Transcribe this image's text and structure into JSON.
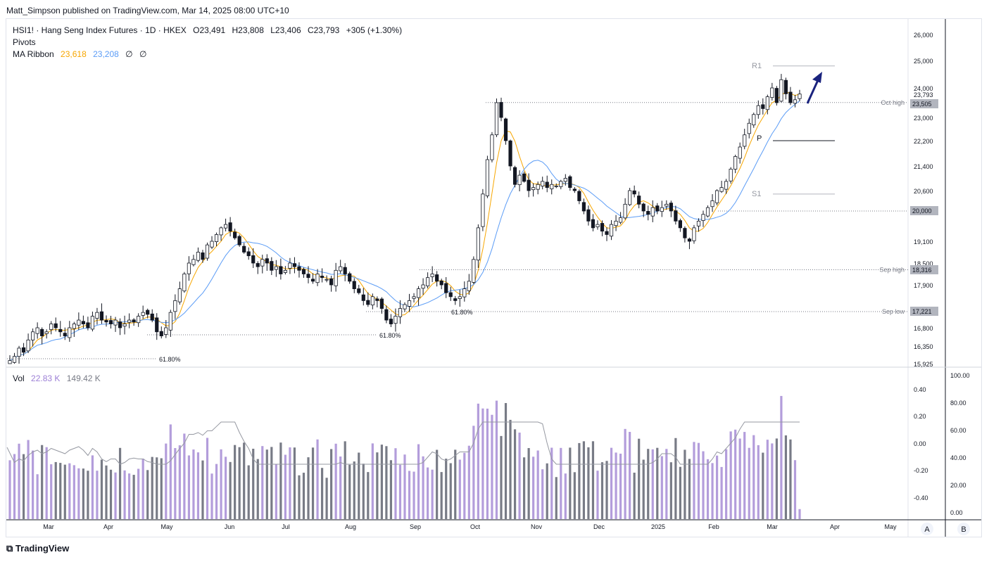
{
  "publisher": "Matt_Simpson published on TradingView.com, Mar 14, 2025 08:00 UTC+10",
  "legend": {
    "symbol": "HSI1! · Hang Seng Index Futures · 1D · HKEX",
    "open": "O23,491",
    "high": "H23,808",
    "low": "L23,406",
    "close": "C23,793",
    "change": "+305 (+1.30%)",
    "pivots": "Pivots",
    "ma_label": "MA Ribbon",
    "ma1": "23,618",
    "ma2": "23,208",
    "ma3": "∅",
    "ma4": "∅"
  },
  "volume_legend": {
    "label": "Vol",
    "v1": "22.83 K",
    "v2": "149.42 K"
  },
  "brand": "TradingView",
  "scale_buttons": [
    "A",
    "B"
  ],
  "colors": {
    "up_candle": "#ffffff",
    "down_candle": "#131722",
    "ma_fast": "#f7a600",
    "ma_slow": "#5b9cf6",
    "vol_up": "#b39ddb",
    "vol_down": "#787b86",
    "arrow": "#1a237e",
    "price_label_bg": "#b2b5be"
  },
  "chart_data": {
    "type": "candlestick",
    "x_axis_labels": [
      "Mar",
      "Apr",
      "May",
      "Jun",
      "Jul",
      "Aug",
      "Sep",
      "Oct",
      "Nov",
      "Dec",
      "2025",
      "Feb",
      "Mar",
      "Apr",
      "May"
    ],
    "price_axis_ticks": [
      "26,000",
      "25,000",
      "24,000",
      "23,000",
      "22,200",
      "21,400",
      "20,600",
      "19,100",
      "18,500",
      "17,900",
      "16,800",
      "16,350",
      "15,925"
    ],
    "volume_axis_left": [
      "0.40",
      "0.20",
      "0.00",
      "-0.20",
      "-0.40"
    ],
    "volume_axis_right": [
      "100.00",
      "80.00",
      "60.00",
      "40.00",
      "20.00",
      "0.00"
    ],
    "price_labels": [
      {
        "text": "23,793",
        "type": "last"
      },
      {
        "text": "23,505",
        "type": "highlight"
      },
      {
        "text": "20,000",
        "type": "highlight"
      },
      {
        "text": "18,316",
        "type": "highlight"
      },
      {
        "text": "17,221",
        "type": "highlight"
      }
    ],
    "levels": [
      {
        "label": "Oct high",
        "value": 23505
      },
      {
        "label": "Sep high",
        "value": 18316
      },
      {
        "label": "Sep low",
        "value": 17221
      },
      {
        "label": "",
        "value": 20000
      }
    ],
    "pivots": [
      {
        "label": "R1",
        "value": 24800
      },
      {
        "label": "P",
        "value": 22200
      },
      {
        "label": "S1",
        "value": 20500
      }
    ],
    "fib_labels": [
      "61.80%",
      "61.80%",
      "61.80%"
    ],
    "series_close": [
      16000,
      16100,
      16300,
      16200,
      16500,
      16700,
      16800,
      16600,
      16700,
      16900,
      16800,
      16700,
      16600,
      16800,
      16900,
      17000,
      16900,
      16800,
      17100,
      17200,
      17000,
      16950,
      16900,
      17000,
      16800,
      16900,
      17000,
      16950,
      17100,
      17200,
      17150,
      17000,
      16700,
      16600,
      16800,
      17200,
      17500,
      17800,
      18200,
      18500,
      18600,
      18800,
      18600,
      19000,
      19100,
      19300,
      19500,
      19600,
      19400,
      19200,
      19000,
      18800,
      18700,
      18500,
      18400,
      18600,
      18500,
      18300,
      18400,
      18200,
      18300,
      18500,
      18400,
      18300,
      18200,
      18100,
      18000,
      18200,
      18100,
      18050,
      17900,
      18300,
      18400,
      18200,
      18000,
      17800,
      17700,
      17500,
      17400,
      17600,
      17500,
      17300,
      17000,
      16900,
      17100,
      17300,
      17400,
      17500,
      17600,
      17800,
      17900,
      18100,
      18200,
      18000,
      17900,
      17700,
      17600,
      17500,
      17600,
      17800,
      18000,
      18600,
      19500,
      20500,
      21600,
      22400,
      23500,
      23000,
      22200,
      21400,
      20800,
      21100,
      20900,
      20600,
      20700,
      20800,
      20900,
      20700,
      20800,
      20750,
      20900,
      21000,
      20700,
      20600,
      20300,
      20000,
      19700,
      19500,
      19600,
      19400,
      19300,
      19600,
      19700,
      19800,
      20200,
      20600,
      20500,
      20200,
      20000,
      19900,
      20100,
      20000,
      20100,
      20200,
      20000,
      19700,
      19500,
      19200,
      19100,
      19500,
      19700,
      19900,
      20100,
      20300,
      20600,
      20700,
      20900,
      21300,
      21700,
      22000,
      22400,
      22800,
      23100,
      23400,
      23300,
      23700,
      24000,
      23500,
      24300,
      23800,
      23500,
      23600,
      23793
    ]
  }
}
